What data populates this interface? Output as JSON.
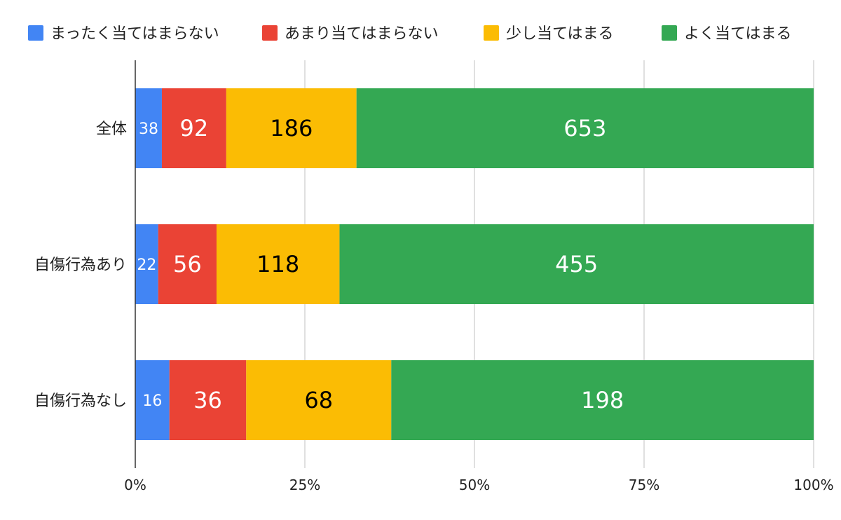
{
  "chart_data": {
    "type": "bar",
    "orientation": "horizontal",
    "stacking": "percent",
    "categories": [
      "全体",
      "自傷行為あり",
      "自傷行為なし"
    ],
    "series": [
      {
        "name": "まったく当てはまらない",
        "color": "#4285F4",
        "label_color": "#ffffff",
        "values": [
          38,
          22,
          16
        ]
      },
      {
        "name": "あまり当てはまらない",
        "color": "#EA4335",
        "label_color": "#ffffff",
        "values": [
          92,
          56,
          36
        ]
      },
      {
        "name": "少し当てはまる",
        "color": "#FBBC04",
        "label_color": "#000000",
        "values": [
          186,
          118,
          68
        ]
      },
      {
        "name": "よく当てはまる",
        "color": "#34A853",
        "label_color": "#ffffff",
        "values": [
          653,
          455,
          198
        ]
      }
    ],
    "x_ticks": [
      "0%",
      "25%",
      "50%",
      "75%",
      "100%"
    ],
    "xlim": [
      0,
      100
    ],
    "grid": true,
    "legend_position": "top"
  }
}
